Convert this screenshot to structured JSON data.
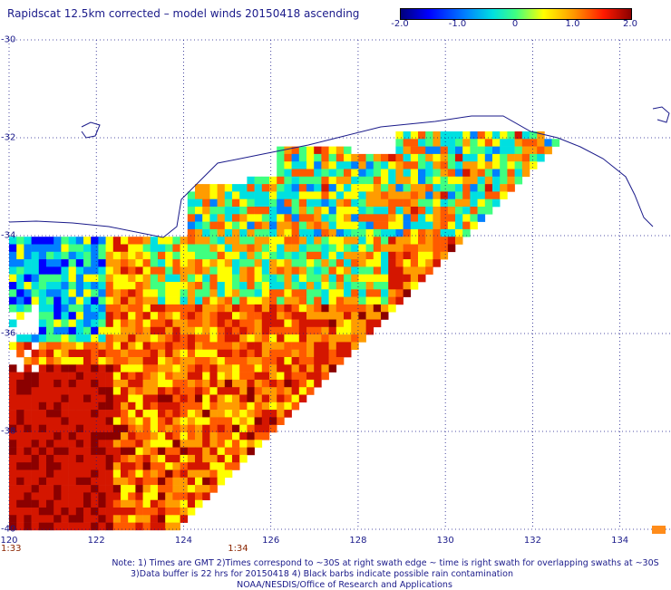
{
  "title": "Rapidscat 12.5km corrected – model winds 20150418 ascending",
  "colorbar": {
    "ticks": [
      "-2.0",
      "-1.0",
      "0",
      "1.0",
      "2.0"
    ],
    "tick_values": [
      -2.0,
      -1.0,
      0,
      1.0,
      2.0
    ],
    "range": [
      -2.0,
      2.0
    ],
    "colors": [
      "#00007a",
      "#0000ff",
      "#0080ff",
      "#00e0e0",
      "#40ff80",
      "#ffff00",
      "#ff9900",
      "#ff1a00",
      "#8b0000"
    ]
  },
  "map": {
    "lon_ticks": [
      "120",
      "122",
      "124",
      "126",
      "128",
      "130",
      "132",
      "134"
    ],
    "lon_values": [
      120,
      122,
      124,
      126,
      128,
      130,
      132,
      134
    ],
    "lat_ticks": [
      "-30",
      "-32",
      "-34",
      "-36",
      "-38",
      "-40"
    ],
    "lat_values": [
      -30,
      -32,
      -34,
      -36,
      -38,
      -40
    ],
    "lon_range": [
      120,
      135
    ],
    "lat_range": [
      -40,
      -30
    ],
    "grid": "dotted",
    "dominant_colors": [
      "#8b0000",
      "#d41600",
      "#ff5a00",
      "#ff9c00",
      "#ffff00",
      "#40ff80",
      "#00e0e0",
      "#0080ff",
      "#0000ff"
    ]
  },
  "time_labels": [
    {
      "text": "1:33",
      "lon": 120
    },
    {
      "text": "1:34",
      "lon": 125.2
    }
  ],
  "notes": [
    "Note: 1) Times are GMT 2)Times correspond to ~30S at right swath edge ~ time is right swath for overlapping swaths at ~30S",
    "3)Data buffer is 22 hrs for 20150418 4) Black barbs indicate possible rain contamination",
    "NOAA/NESDIS/Office of Research and Applications"
  ]
}
